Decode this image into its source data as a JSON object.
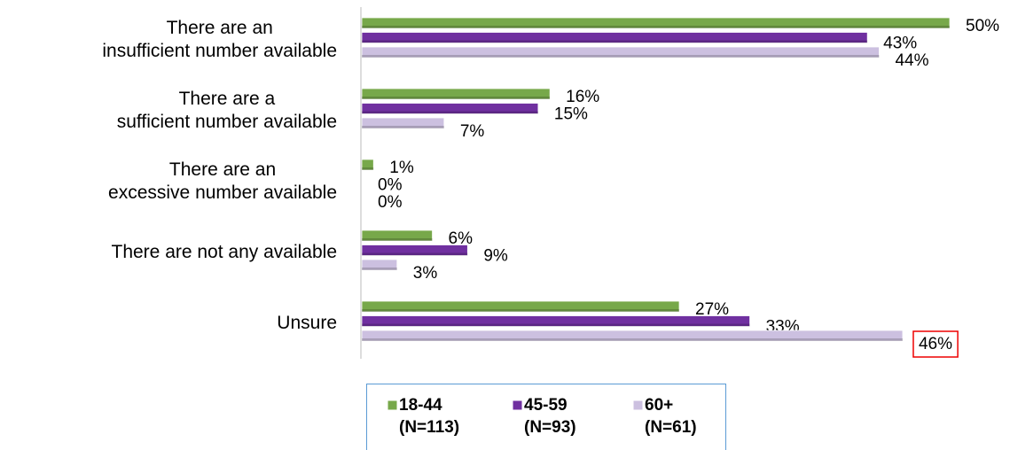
{
  "chart_data": {
    "type": "bar",
    "orientation": "horizontal",
    "categories": [
      "There are an\ninsufficient number available",
      "There are a\nsufficient number available",
      "There are an\nexcessive number available",
      "There are not any available",
      "Unsure"
    ],
    "series": [
      {
        "name": "18-44\n(N=113)",
        "color": "#77a84a",
        "values": [
          50,
          16,
          1,
          6,
          27
        ],
        "value_labels": [
          "50%",
          "16%",
          "1%",
          "6%",
          "27%"
        ]
      },
      {
        "name": "45-59\n(N=93)",
        "color": "#7030a0",
        "values": [
          43,
          15,
          0,
          9,
          33
        ],
        "value_labels": [
          "43%",
          "15%",
          "0%",
          "9%",
          "33%"
        ]
      },
      {
        "name": "60+\n(N=61)",
        "color": "#ccc0e0",
        "values": [
          44,
          7,
          0,
          3,
          46
        ],
        "value_labels": [
          "44%",
          "7%",
          "0%",
          "3%",
          "46%"
        ]
      }
    ],
    "xlim": [
      0,
      50
    ],
    "legend": "bottom"
  }
}
